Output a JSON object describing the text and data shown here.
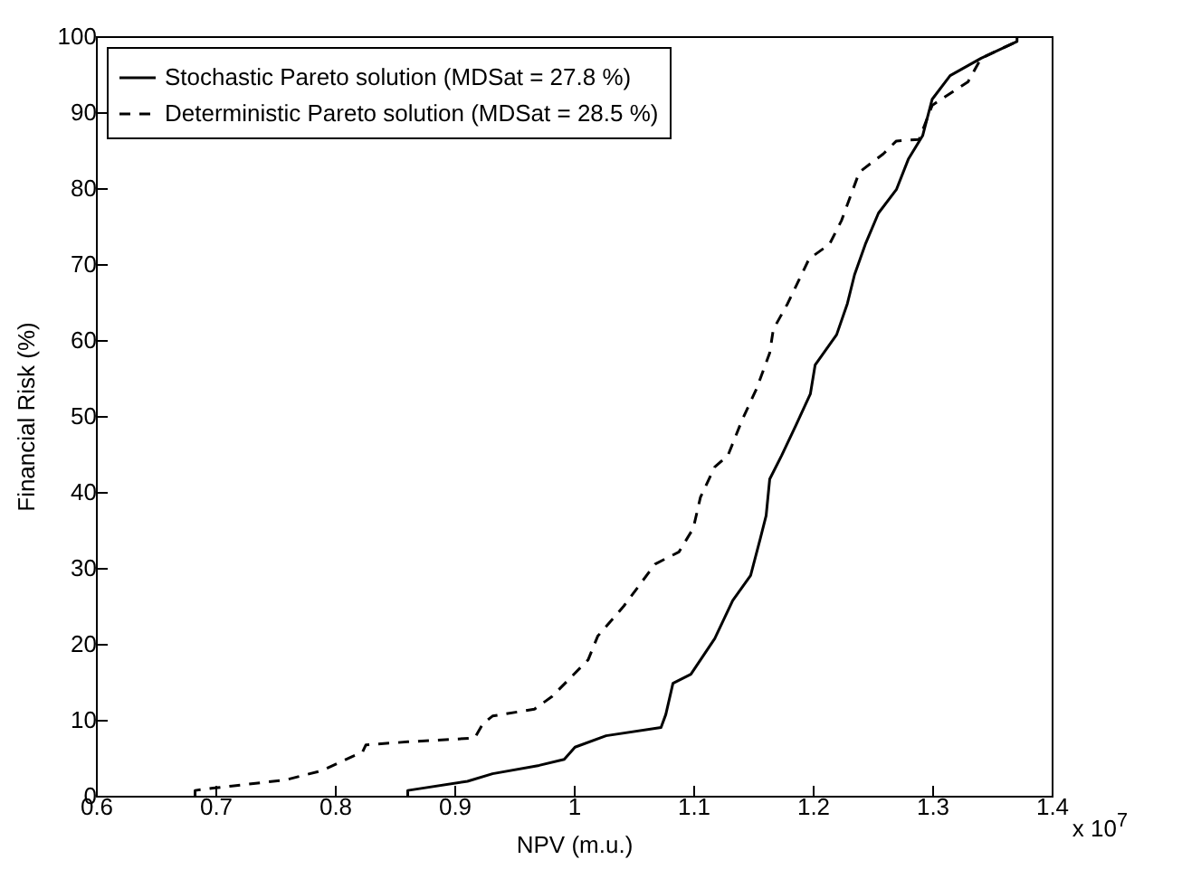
{
  "chart_data": {
    "type": "line",
    "xlabel": "NPV (m.u.)",
    "ylabel": "Financial Risk (%)",
    "annotations": [
      "x 10$^{7}$"
    ],
    "xlim": [
      0.6,
      1.4
    ],
    "xticks": [
      0.6,
      0.7,
      0.8,
      0.9,
      1,
      1.1,
      1.2,
      1.3,
      1.4
    ],
    "ylim": [
      0,
      100
    ],
    "yticks": [
      0,
      10,
      20,
      30,
      40,
      50,
      60,
      70,
      80,
      90,
      100
    ],
    "legend": "top left",
    "grid": false,
    "marker": "none",
    "series": [
      {
        "name": "Stochastic Pareto solution (MDSat = 27.8 %)",
        "color": "#000000",
        "line_style": "solid",
        "x": [
          0.861,
          0.861,
          0.911,
          0.932,
          0.971,
          0.992,
          1.001,
          1.027,
          1.073,
          1.077,
          1.083,
          1.098,
          1.118,
          1.133,
          1.148,
          1.156,
          1.161,
          1.164,
          1.174,
          1.186,
          1.198,
          1.202,
          1.22,
          1.229,
          1.235,
          1.244,
          1.255,
          1.27,
          1.28,
          1.292,
          1.3,
          1.315,
          1.341,
          1.371,
          1.371
        ],
        "values": [
          0,
          0.7,
          1.9,
          2.9,
          4,
          4.8,
          6.4,
          7.9,
          9,
          10.7,
          14.8,
          16,
          20.7,
          25.7,
          29,
          33.8,
          36.9,
          41.7,
          44.8,
          48.8,
          52.9,
          56.7,
          60.7,
          64.8,
          68.6,
          72.6,
          76.7,
          79.8,
          83.8,
          86.9,
          91.7,
          94.8,
          97.1,
          99.3,
          100
        ]
      },
      {
        "name": "Deterministic Pareto solution (MDSat = 28.5 %)",
        "color": "#000000",
        "line_style": "dashed",
        "x": [
          0.683,
          0.683,
          0.698,
          0.759,
          0.789,
          0.815,
          0.823,
          0.826,
          0.861,
          0.917,
          0.924,
          0.932,
          0.967,
          0.982,
          1.012,
          1.02,
          1.042,
          1.068,
          1.088,
          1.1,
          1.106,
          1.118,
          1.129,
          1.141,
          1.153,
          1.164,
          1.167,
          1.179,
          1.197,
          1.214,
          1.224,
          1.239,
          1.259,
          1.27,
          1.289,
          1.3,
          1.33,
          1.341,
          1.371,
          1.371
        ],
        "values": [
          0,
          0.7,
          1,
          2.1,
          3.3,
          5.2,
          5.7,
          6.7,
          7.1,
          7.6,
          9.5,
          10.5,
          11.4,
          13.1,
          17.9,
          21,
          25,
          30.5,
          32.1,
          35.2,
          39.3,
          43.3,
          44.8,
          49.5,
          53.6,
          58.3,
          61.4,
          64.8,
          70.7,
          72.6,
          75.7,
          82.1,
          84.5,
          86.2,
          86.4,
          90.9,
          94,
          97.1,
          99.3,
          100
        ]
      }
    ]
  }
}
